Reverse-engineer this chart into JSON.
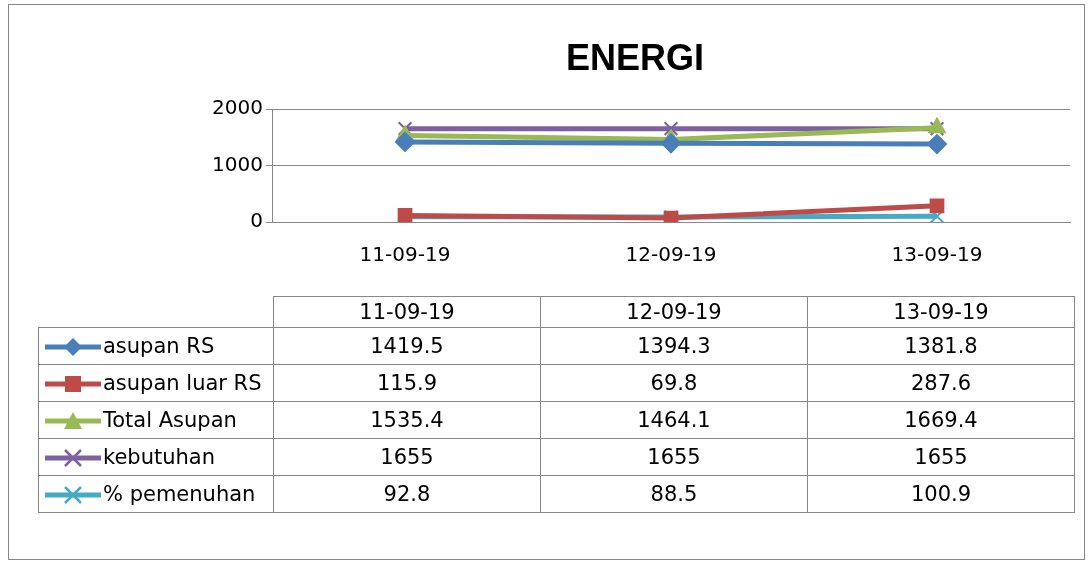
{
  "chart_data": {
    "type": "line",
    "title": "ENERGI",
    "categories": [
      "11-09-19",
      "12-09-19",
      "13-09-19"
    ],
    "series": [
      {
        "name": "asupan RS",
        "color": "#4a7ebb",
        "marker": "diamond",
        "values": [
          1419.5,
          1394.3,
          1381.8
        ]
      },
      {
        "name": "asupan luar RS",
        "color": "#be4b48",
        "marker": "square",
        "values": [
          115.9,
          69.8,
          287.6
        ]
      },
      {
        "name": "Total Asupan",
        "color": "#98b954",
        "marker": "triangle",
        "values": [
          1535.4,
          1464.1,
          1669.4
        ]
      },
      {
        "name": "kebutuhan",
        "color": "#7d60a0",
        "marker": "cross",
        "values": [
          1655,
          1655,
          1655
        ]
      },
      {
        "name": "% pemenuhan",
        "color": "#46aac5",
        "marker": "cross",
        "values": [
          92.8,
          88.5,
          100.9
        ]
      }
    ],
    "ylim": [
      0,
      2000
    ],
    "yticks": [
      0,
      1000,
      2000
    ],
    "grid": "y",
    "legend": "bottom",
    "data_labels": true,
    "line_style": "solid"
  }
}
